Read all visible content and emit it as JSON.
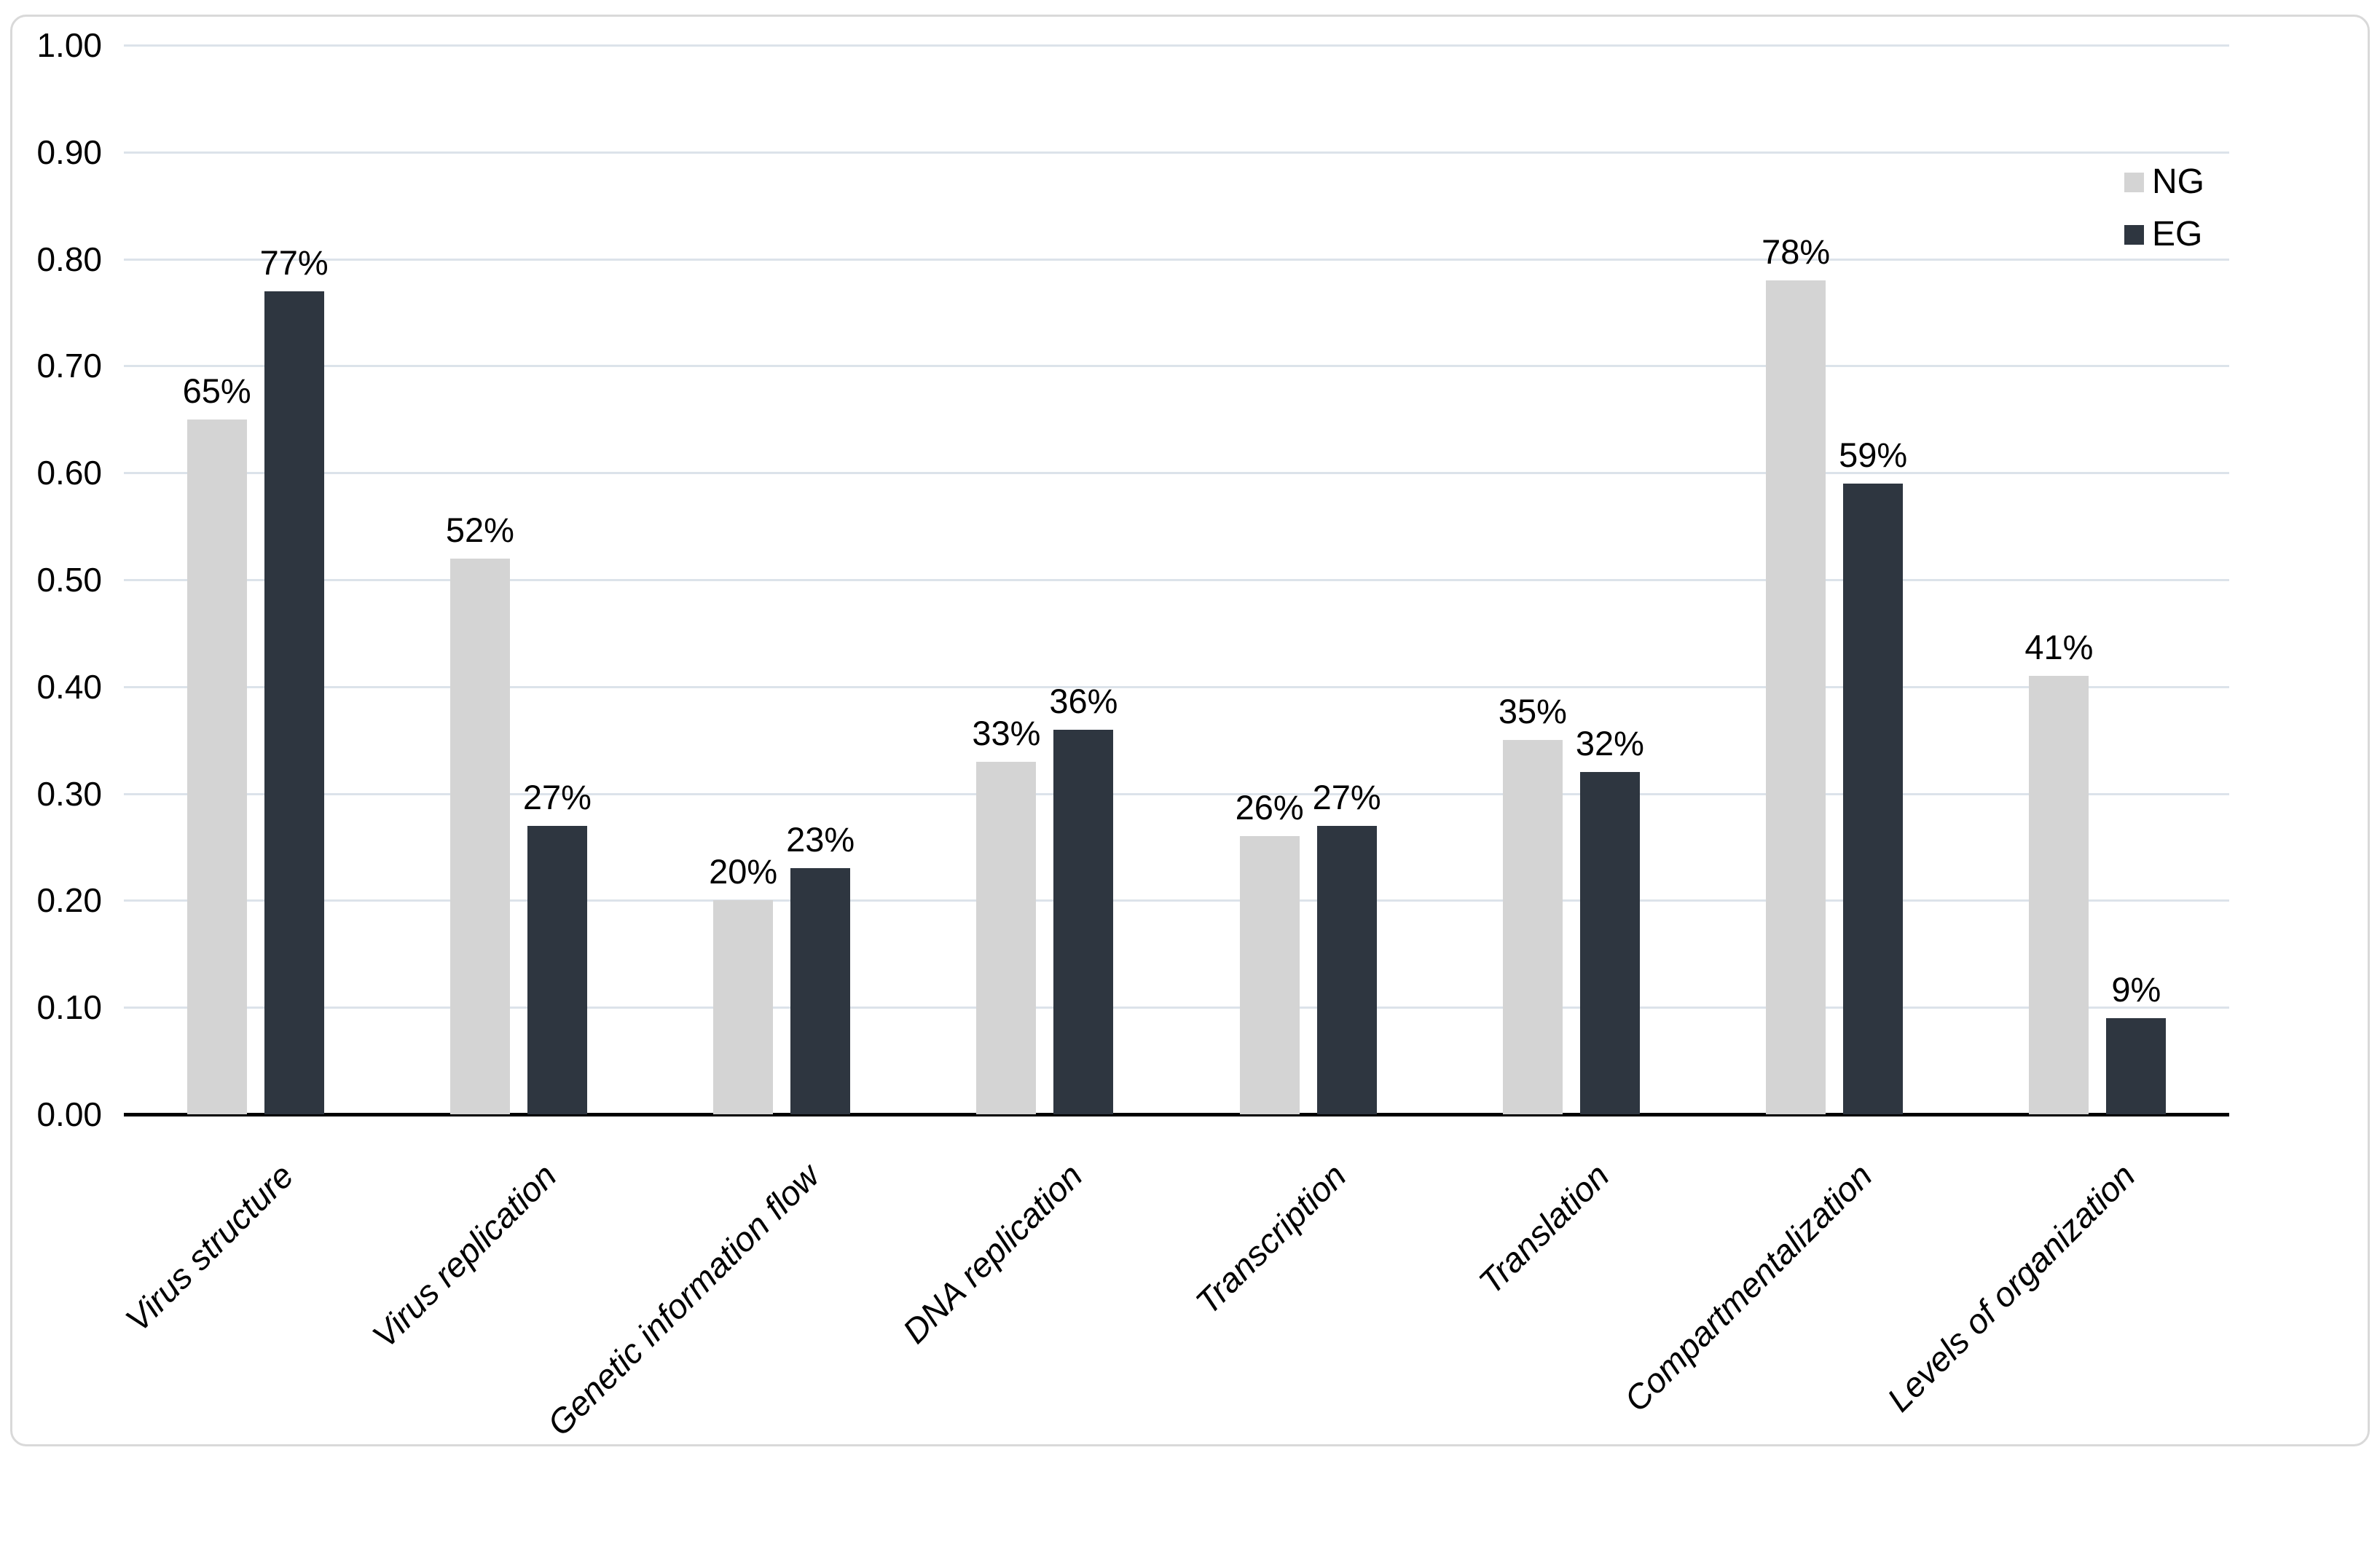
{
  "chart_data": {
    "type": "bar",
    "title": "",
    "xlabel": "",
    "ylabel": "",
    "grid": true,
    "legend_position": "top-right",
    "categories": [
      "Virus structure",
      "Virus replication",
      "Genetic information flow",
      "DNA replication",
      "Transcription",
      "Translation",
      "Compartmentalization",
      "Levels of organization"
    ],
    "series": [
      {
        "name": "NG",
        "color": "#d4d4d4",
        "values": [
          0.65,
          0.52,
          0.2,
          0.33,
          0.26,
          0.35,
          0.78,
          0.41
        ],
        "labels": [
          "65%",
          "52%",
          "20%",
          "33%",
          "26%",
          "35%",
          "78%",
          "41%"
        ]
      },
      {
        "name": "EG",
        "color": "#2e3640",
        "values": [
          0.77,
          0.27,
          0.23,
          0.36,
          0.27,
          0.32,
          0.59,
          0.09
        ],
        "labels": [
          "77%",
          "27%",
          "23%",
          "36%",
          "27%",
          "32%",
          "59%",
          "9%"
        ]
      }
    ],
    "y_axis": {
      "min": 0,
      "max": 1,
      "step": 0.1,
      "tick_labels": [
        "0.00",
        "0.10",
        "0.20",
        "0.30",
        "0.40",
        "0.50",
        "0.60",
        "0.70",
        "0.80",
        "0.90",
        "1.00"
      ]
    }
  },
  "colors": {
    "background": "#ffffff",
    "gridline": "#dce3ea",
    "axis": "#000000",
    "border": "#d9d9d9",
    "text": "#000000",
    "ng_bar": "#d4d4d4",
    "eg_bar": "#2e3640"
  }
}
